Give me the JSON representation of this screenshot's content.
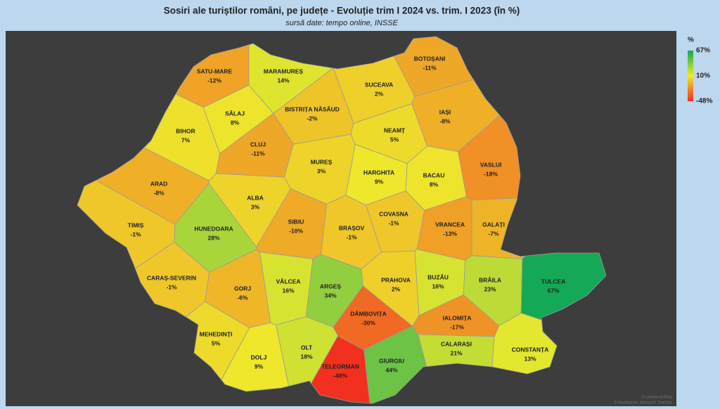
{
  "title": "Sosiri ale turiștilor români, pe județe - Evoluție trim I 2024 vs. trim. I 2023 (în %)",
  "subtitle": "sursă date: tempo online, INSSE",
  "legend": {
    "title": "%",
    "max": {
      "value": 67,
      "label": "67%"
    },
    "mid": {
      "value": 10,
      "label": "10%"
    },
    "min": {
      "value": -48,
      "label": "-48%"
    },
    "min_color": "#f2301f",
    "mid_color": "#eeea2c",
    "max_color": "#14a957"
  },
  "attribution": [
    "Cu platformă Bing",
    "© GeoNames, Microsoft, TomTom"
  ],
  "counties": [
    {
      "name": "SATU-MARE",
      "value": -12,
      "value_label": "-12%"
    },
    {
      "name": "MARAMUREȘ",
      "value": 14,
      "value_label": "14%"
    },
    {
      "name": "BOTOȘANI",
      "value": -11,
      "value_label": "-11%"
    },
    {
      "name": "SUCEAVA",
      "value": 2,
      "value_label": "2%"
    },
    {
      "name": "SĂLAJ",
      "value": 8,
      "value_label": "8%"
    },
    {
      "name": "BISTRIȚA NĂSĂUD",
      "value": -2,
      "value_label": "-2%"
    },
    {
      "name": "IAȘI",
      "value": -8,
      "value_label": "-8%"
    },
    {
      "name": "BIHOR",
      "value": 7,
      "value_label": "7%"
    },
    {
      "name": "CLUJ",
      "value": -11,
      "value_label": "-11%"
    },
    {
      "name": "NEAMȚ",
      "value": 5,
      "value_label": "5%"
    },
    {
      "name": "MUREȘ",
      "value": 3,
      "value_label": "3%"
    },
    {
      "name": "HARGHITA",
      "value": 9,
      "value_label": "9%"
    },
    {
      "name": "VASLUI",
      "value": -18,
      "value_label": "-18%"
    },
    {
      "name": "BACAU",
      "value": 8,
      "value_label": "8%"
    },
    {
      "name": "ARAD",
      "value": -8,
      "value_label": "-8%"
    },
    {
      "name": "ALBA",
      "value": 3,
      "value_label": "3%"
    },
    {
      "name": "SIBIU",
      "value": -10,
      "value_label": "-10%"
    },
    {
      "name": "COVASNA",
      "value": -1,
      "value_label": "-1%"
    },
    {
      "name": "BRAȘOV",
      "value": -1,
      "value_label": "-1%"
    },
    {
      "name": "VRANCEA",
      "value": -13,
      "value_label": "-13%"
    },
    {
      "name": "GALAȚI",
      "value": -7,
      "value_label": "-7%"
    },
    {
      "name": "TIMIȘ",
      "value": -1,
      "value_label": "-1%"
    },
    {
      "name": "HUNEDOARA",
      "value": 28,
      "value_label": "28%"
    },
    {
      "name": "CARAȘ-SEVERIN",
      "value": -1,
      "value_label": "-1%"
    },
    {
      "name": "VÂLCEA",
      "value": 16,
      "value_label": "16%"
    },
    {
      "name": "ARGEȘ",
      "value": 34,
      "value_label": "34%"
    },
    {
      "name": "PRAHOVA",
      "value": 2,
      "value_label": "2%"
    },
    {
      "name": "BUZĂU",
      "value": 16,
      "value_label": "16%"
    },
    {
      "name": "BRĂILA",
      "value": 23,
      "value_label": "23%"
    },
    {
      "name": "TULCEA",
      "value": 67,
      "value_label": "67%"
    },
    {
      "name": "GORJ",
      "value": -6,
      "value_label": "-6%"
    },
    {
      "name": "DÂMBOVIȚA",
      "value": -30,
      "value_label": "-30%"
    },
    {
      "name": "IALOMIȚA",
      "value": -17,
      "value_label": "-17%"
    },
    {
      "name": "MEHEDINȚI",
      "value": 5,
      "value_label": "5%"
    },
    {
      "name": "CALARAȘI",
      "value": 21,
      "value_label": "21%"
    },
    {
      "name": "CONSTANȚA",
      "value": 13,
      "value_label": "13%"
    },
    {
      "name": "OLT",
      "value": 18,
      "value_label": "18%"
    },
    {
      "name": "DOLJ",
      "value": 9,
      "value_label": "9%"
    },
    {
      "name": "GIURGIU",
      "value": 44,
      "value_label": "44%"
    },
    {
      "name": "TELEORMAN",
      "value": -48,
      "value_label": "-48%"
    }
  ]
}
